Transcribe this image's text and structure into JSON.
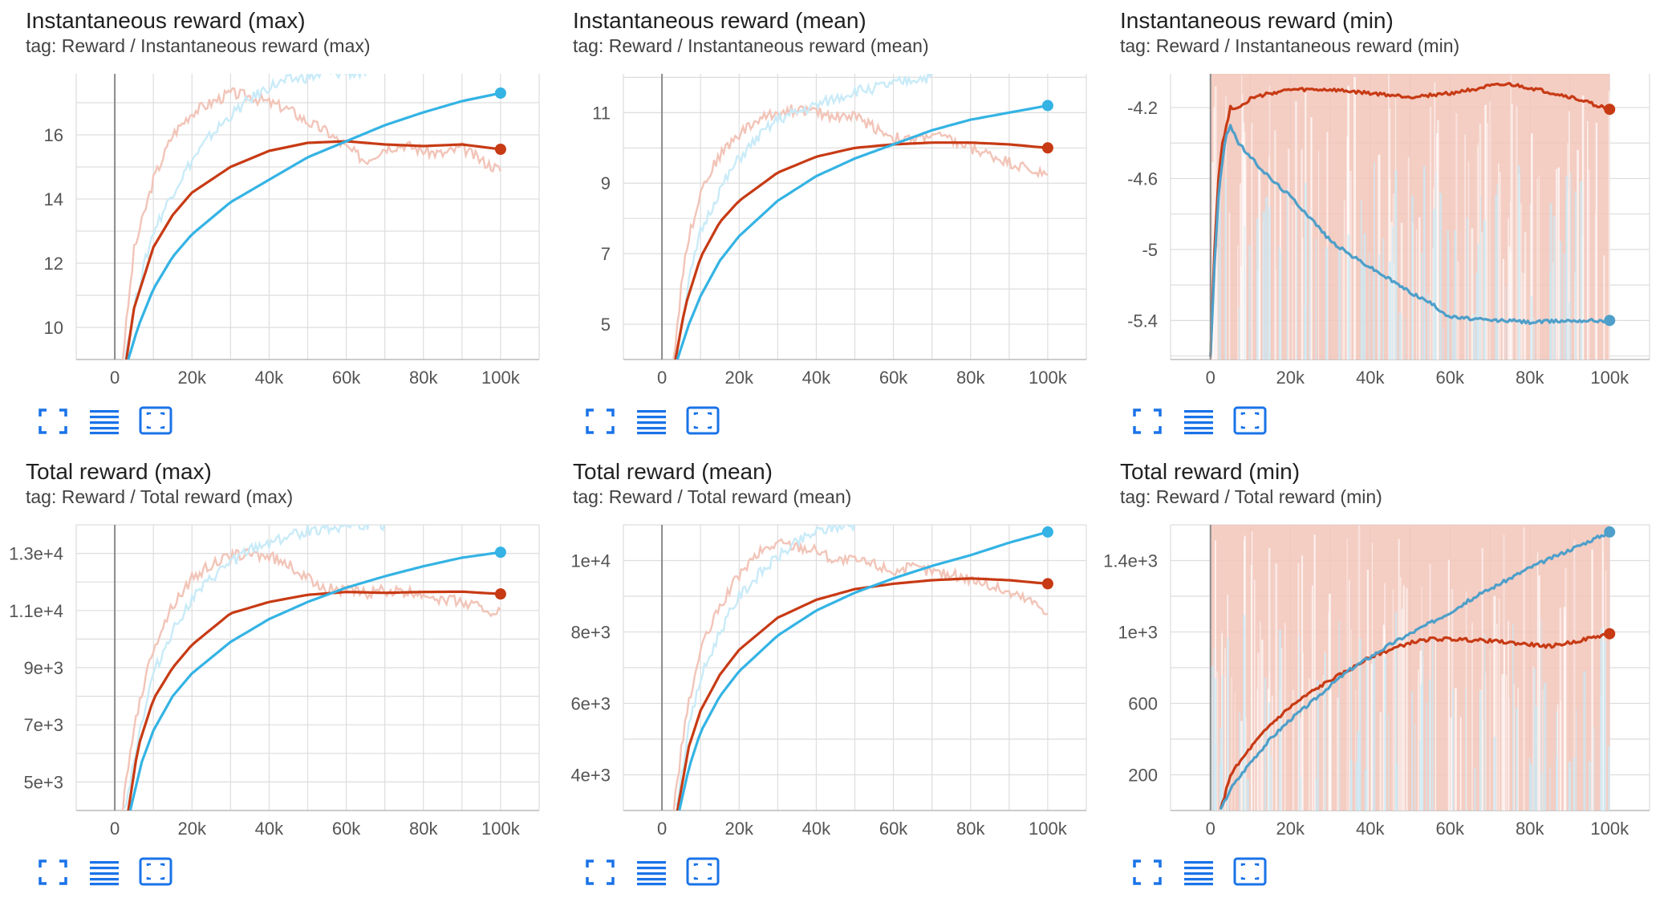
{
  "colors": {
    "red": "#c73a14",
    "red_light": "#f2c4b8",
    "blue": "#34b3e4",
    "blue_light": "#c9ebf8",
    "blue_dark": "#4e9fc9",
    "grid": "#dddddd",
    "axis_text": "#555555"
  },
  "toolbar_icons": [
    "fullscreen-icon",
    "data-table-icon",
    "fit-domain-icon"
  ],
  "cards": [
    {
      "title": "Instantaneous reward (max)",
      "tag": "tag: Reward / Instantaneous reward (max)",
      "chart_data": {
        "type": "line",
        "x_ticks": [
          "0",
          "20k",
          "40k",
          "60k",
          "80k",
          "100k"
        ],
        "y_ticks": [
          "10",
          "12",
          "14",
          "16"
        ],
        "xlim": [
          -10000,
          110000
        ],
        "ylim": [
          9,
          17.9
        ],
        "series": [
          {
            "color": "red",
            "x": [
              3000,
              5000,
              10000,
              15000,
              20000,
              30000,
              40000,
              50000,
              60000,
              70000,
              80000,
              90000,
              100000
            ],
            "y": [
              9,
              10.6,
              12.5,
              13.5,
              14.2,
              15.0,
              15.5,
              15.75,
              15.8,
              15.7,
              15.65,
              15.7,
              15.55
            ]
          },
          {
            "color": "blue",
            "x": [
              3500,
              6000,
              10000,
              15000,
              20000,
              30000,
              40000,
              50000,
              60000,
              70000,
              80000,
              90000,
              100000
            ],
            "y": [
              9,
              10.0,
              11.2,
              12.2,
              12.9,
              13.9,
              14.6,
              15.3,
              15.8,
              16.3,
              16.7,
              17.05,
              17.3
            ]
          }
        ],
        "raw_series": [
          {
            "color": "red_light",
            "x": [
              2000,
              5000,
              10000,
              15000,
              20000,
              25000,
              30000,
              35000,
              40000,
              45000,
              50000,
              55000,
              60000,
              65000,
              70000,
              75000,
              80000,
              85000,
              90000,
              95000,
              100000
            ],
            "y": [
              9,
              12.4,
              14.6,
              16.0,
              16.7,
              17.0,
              17.3,
              17.2,
              17.0,
              16.8,
              16.4,
              16.1,
              15.6,
              15.2,
              15.6,
              15.7,
              15.5,
              15.4,
              15.6,
              15.2,
              14.9
            ]
          },
          {
            "color": "blue_light",
            "x": [
              2500,
              6000,
              10000,
              15000,
              20000,
              25000,
              30000,
              35000,
              40000,
              45000,
              50000,
              55000,
              60000,
              65000
            ],
            "y": [
              9,
              11.2,
              13.0,
              14.2,
              15.2,
              16.0,
              16.6,
              17.1,
              17.5,
              17.7,
              17.8,
              17.9,
              17.95,
              17.9
            ]
          }
        ]
      }
    },
    {
      "title": "Instantaneous reward (mean)",
      "tag": "tag: Reward / Instantaneous reward (mean)",
      "chart_data": {
        "type": "line",
        "x_ticks": [
          "0",
          "20k",
          "40k",
          "60k",
          "80k",
          "100k"
        ],
        "y_ticks": [
          "5",
          "7",
          "9",
          "11"
        ],
        "xlim": [
          -10000,
          110000
        ],
        "ylim": [
          4,
          12.1
        ],
        "series": [
          {
            "color": "red",
            "x": [
              3500,
              6000,
              10000,
              15000,
              20000,
              30000,
              40000,
              50000,
              60000,
              70000,
              80000,
              90000,
              100000
            ],
            "y": [
              4,
              5.5,
              6.9,
              7.9,
              8.5,
              9.3,
              9.75,
              10.0,
              10.1,
              10.15,
              10.15,
              10.1,
              10.0
            ]
          },
          {
            "color": "blue",
            "x": [
              4000,
              7000,
              10000,
              15000,
              20000,
              30000,
              40000,
              50000,
              60000,
              70000,
              80000,
              90000,
              100000
            ],
            "y": [
              4,
              5.0,
              5.8,
              6.8,
              7.5,
              8.5,
              9.2,
              9.7,
              10.1,
              10.5,
              10.8,
              11.0,
              11.2
            ]
          }
        ],
        "raw_series": [
          {
            "color": "red_light",
            "x": [
              3000,
              6000,
              10000,
              15000,
              20000,
              25000,
              30000,
              35000,
              40000,
              45000,
              50000,
              55000,
              60000,
              65000,
              70000,
              75000,
              80000,
              85000,
              90000,
              95000,
              100000
            ],
            "y": [
              4,
              7.0,
              8.8,
              9.8,
              10.4,
              10.8,
              11.0,
              11.1,
              11.0,
              10.9,
              10.9,
              10.6,
              10.3,
              10.2,
              10.4,
              10.2,
              10.0,
              9.8,
              9.6,
              9.4,
              9.2
            ]
          },
          {
            "color": "blue_light",
            "x": [
              3500,
              7000,
              10000,
              15000,
              20000,
              25000,
              30000,
              35000,
              40000,
              45000,
              50000,
              55000,
              60000,
              65000,
              70000
            ],
            "y": [
              4,
              6.2,
              7.6,
              8.8,
              9.7,
              10.3,
              10.8,
              11.0,
              11.2,
              11.4,
              11.6,
              11.7,
              11.8,
              11.95,
              12.0
            ]
          }
        ]
      }
    },
    {
      "title": "Instantaneous reward (min)",
      "tag": "tag: Reward / Instantaneous reward (min)",
      "chart_data": {
        "type": "line",
        "x_ticks": [
          "0",
          "20k",
          "40k",
          "60k",
          "80k",
          "100k"
        ],
        "y_ticks": [
          "-4.2",
          "-4.6",
          "-5",
          "-5.4"
        ],
        "xlim": [
          -10000,
          110000
        ],
        "ylim": [
          -5.62,
          -4.01
        ],
        "series": [
          {
            "color": "red",
            "x": [
              0,
              1000,
              2000,
              3000,
              4000,
              5000,
              7000,
              10000,
              15000,
              20000,
              30000,
              40000,
              50000,
              60000,
              70000,
              75000,
              80000,
              90000,
              100000
            ],
            "y": [
              -5.6,
              -5.0,
              -4.6,
              -4.4,
              -4.3,
              -4.2,
              -4.2,
              -4.15,
              -4.12,
              -4.1,
              -4.1,
              -4.12,
              -4.14,
              -4.12,
              -4.08,
              -4.07,
              -4.09,
              -4.14,
              -4.21
            ]
          },
          {
            "color": "blue_dark",
            "x": [
              0,
              1000,
              2000,
              3000,
              4000,
              5000,
              7000,
              10000,
              15000,
              20000,
              25000,
              30000,
              35000,
              40000,
              45000,
              50000,
              55000,
              60000,
              70000,
              75000,
              80000,
              90000,
              100000
            ],
            "y": [
              -5.6,
              -5.1,
              -4.7,
              -4.5,
              -4.35,
              -4.3,
              -4.4,
              -4.48,
              -4.6,
              -4.7,
              -4.82,
              -4.95,
              -5.03,
              -5.1,
              -5.17,
              -5.24,
              -5.3,
              -5.38,
              -5.4,
              -5.4,
              -5.41,
              -5.4,
              -5.4
            ]
          }
        ],
        "band": {
          "color": "red_light",
          "x_from": 0,
          "x_to": 100000
        }
      }
    },
    {
      "title": "Total reward (max)",
      "tag": "tag: Reward / Total reward (max)",
      "chart_data": {
        "type": "line",
        "x_ticks": [
          "0",
          "20k",
          "40k",
          "60k",
          "80k",
          "100k"
        ],
        "y_ticks": [
          "5e+3",
          "7e+3",
          "9e+3",
          "1.1e+4",
          "1.3e+4"
        ],
        "xlim": [
          -10000,
          110000
        ],
        "ylim": [
          4000,
          14000
        ],
        "series": [
          {
            "color": "red",
            "x": [
              3500,
              6000,
              10000,
              15000,
              20000,
              30000,
              40000,
              50000,
              60000,
              70000,
              80000,
              90000,
              100000
            ],
            "y": [
              4000,
              6200,
              7900,
              9000,
              9800,
              10900,
              11300,
              11550,
              11650,
              11620,
              11650,
              11660,
              11580
            ]
          },
          {
            "color": "blue",
            "x": [
              4000,
              7000,
              10000,
              15000,
              20000,
              30000,
              40000,
              50000,
              60000,
              70000,
              80000,
              90000,
              100000
            ],
            "y": [
              4000,
              5700,
              6800,
              8000,
              8800,
              9900,
              10700,
              11300,
              11800,
              12200,
              12550,
              12850,
              13040
            ]
          }
        ],
        "raw_series": [
          {
            "color": "red_light",
            "x": [
              2000,
              5000,
              10000,
              15000,
              20000,
              25000,
              30000,
              35000,
              40000,
              45000,
              50000,
              55000,
              60000,
              65000,
              70000,
              75000,
              80000,
              85000,
              90000,
              95000,
              100000
            ],
            "y": [
              4000,
              7000,
              9700,
              11200,
              12100,
              12600,
              12900,
              13000,
              12900,
              12600,
              12100,
              11800,
              11700,
              11600,
              11700,
              11600,
              11600,
              11400,
              11300,
              11100,
              10900
            ]
          },
          {
            "color": "blue_light",
            "x": [
              2500,
              6000,
              10000,
              15000,
              20000,
              25000,
              30000,
              35000,
              40000,
              45000,
              50000,
              55000,
              60000,
              65000,
              70000
            ],
            "y": [
              4000,
              6500,
              8800,
              10300,
              11400,
              12100,
              12700,
              13100,
              13400,
              13600,
              13800,
              13900,
              13980,
              14000,
              14000
            ]
          }
        ]
      }
    },
    {
      "title": "Total reward (mean)",
      "tag": "tag: Reward / Total reward (mean)",
      "chart_data": {
        "type": "line",
        "x_ticks": [
          "0",
          "20k",
          "40k",
          "60k",
          "80k",
          "100k"
        ],
        "y_ticks": [
          "4e+3",
          "6e+3",
          "8e+3",
          "1e+4"
        ],
        "xlim": [
          -10000,
          110000
        ],
        "ylim": [
          3000,
          11000
        ],
        "series": [
          {
            "color": "red",
            "x": [
              4000,
              7000,
              10000,
              15000,
              20000,
              30000,
              40000,
              50000,
              60000,
              70000,
              80000,
              90000,
              100000
            ],
            "y": [
              3000,
              4800,
              5800,
              6800,
              7500,
              8400,
              8900,
              9200,
              9350,
              9450,
              9500,
              9450,
              9350
            ]
          },
          {
            "color": "blue",
            "x": [
              4500,
              7000,
              10000,
              15000,
              20000,
              30000,
              40000,
              50000,
              60000,
              70000,
              80000,
              90000,
              100000
            ],
            "y": [
              3000,
              4200,
              5200,
              6200,
              6900,
              7900,
              8600,
              9100,
              9500,
              9850,
              10150,
              10500,
              10800
            ]
          }
        ],
        "raw_series": [
          {
            "color": "red_light",
            "x": [
              3000,
              6000,
              10000,
              15000,
              20000,
              25000,
              30000,
              35000,
              40000,
              45000,
              50000,
              55000,
              60000,
              65000,
              70000,
              75000,
              80000,
              85000,
              90000,
              95000,
              100000
            ],
            "y": [
              3000,
              5500,
              7500,
              8700,
              9600,
              10200,
              10500,
              10400,
              10300,
              10000,
              10000,
              9900,
              9700,
              9800,
              9700,
              9600,
              9500,
              9300,
              9100,
              8900,
              8600
            ]
          },
          {
            "color": "blue_light",
            "x": [
              3500,
              7000,
              10000,
              15000,
              20000,
              25000,
              30000,
              35000,
              40000,
              45000,
              50000
            ],
            "y": [
              3000,
              5300,
              6700,
              8000,
              9000,
              9600,
              10100,
              10500,
              10800,
              10950,
              11000
            ]
          }
        ]
      }
    },
    {
      "title": "Total reward (min)",
      "tag": "tag: Reward / Total reward (min)",
      "chart_data": {
        "type": "line",
        "x_ticks": [
          "0",
          "20k",
          "40k",
          "60k",
          "80k",
          "100k"
        ],
        "y_ticks": [
          "200",
          "600",
          "1e+3",
          "1.4e+3"
        ],
        "xlim": [
          -10000,
          110000
        ],
        "ylim": [
          0,
          1600
        ],
        "series": [
          {
            "color": "red",
            "x": [
              2500,
              5000,
              10000,
              15000,
              20000,
              25000,
              30000,
              35000,
              40000,
              45000,
              50000,
              55000,
              60000,
              70000,
              80000,
              85000,
              90000,
              100000
            ],
            "y": [
              0,
              200,
              350,
              480,
              580,
              660,
              730,
              790,
              860,
              900,
              940,
              960,
              960,
              950,
              930,
              920,
              940,
              990
            ]
          },
          {
            "color": "blue_dark",
            "x": [
              2500,
              5000,
              10000,
              15000,
              20000,
              25000,
              30000,
              35000,
              40000,
              45000,
              50000,
              55000,
              60000,
              65000,
              70000,
              75000,
              80000,
              85000,
              90000,
              95000,
              100000
            ],
            "y": [
              0,
              120,
              270,
              400,
              510,
              600,
              700,
              790,
              860,
              930,
              990,
              1050,
              1110,
              1180,
              1240,
              1300,
              1360,
              1410,
              1460,
              1510,
              1560
            ]
          }
        ],
        "band": {
          "color": "red_light",
          "x_from": 0,
          "x_to": 100000
        }
      }
    }
  ]
}
